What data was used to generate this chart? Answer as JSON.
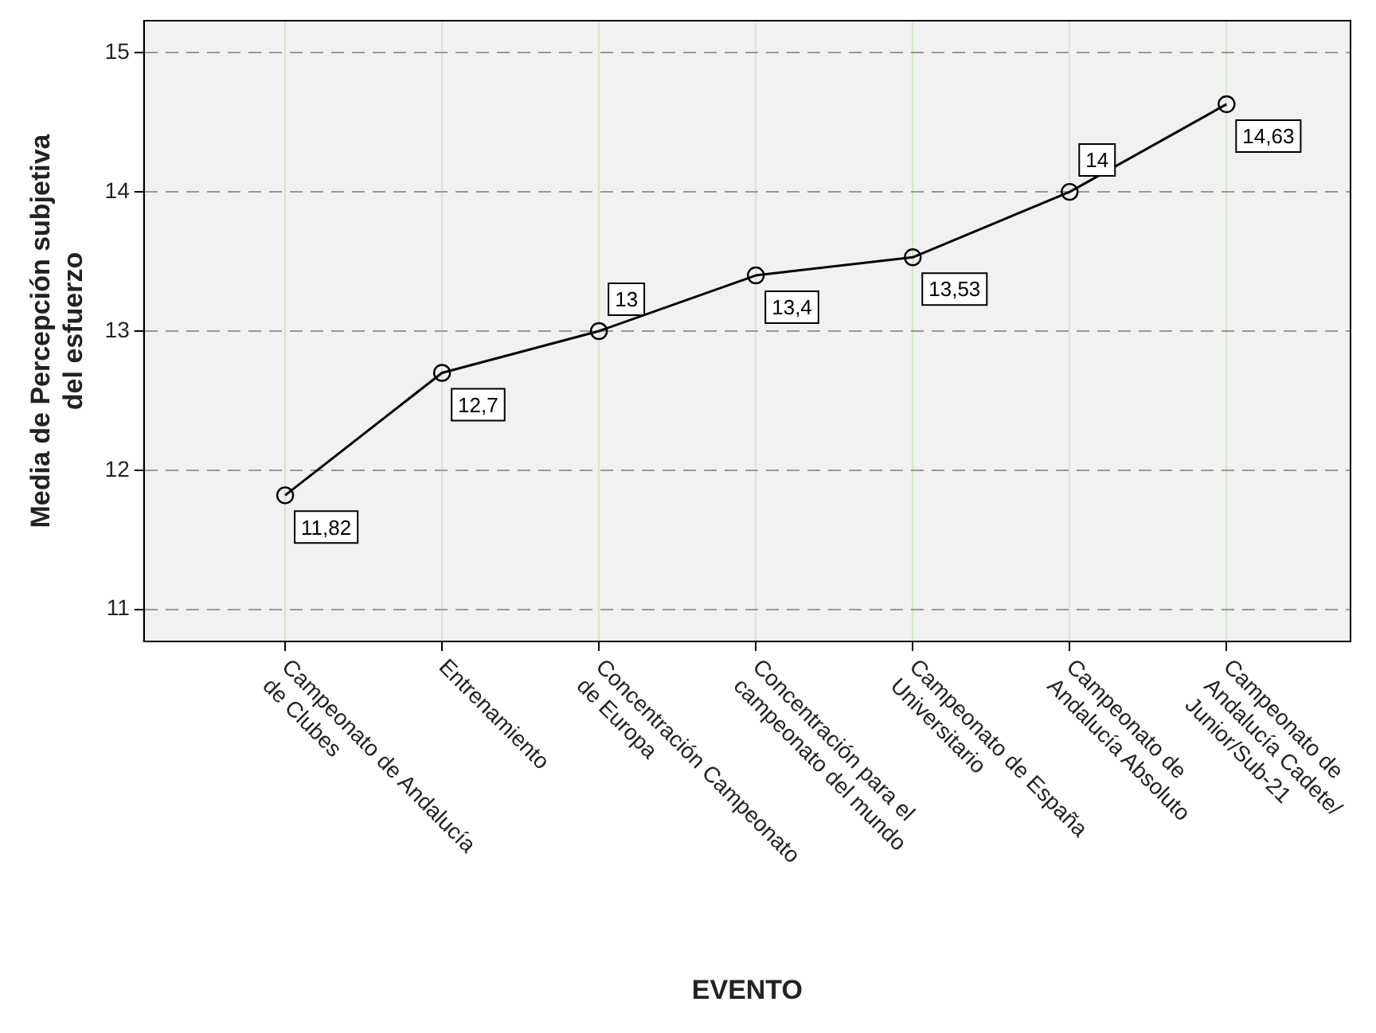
{
  "chart_data": {
    "type": "line",
    "xlabel": "EVENTO",
    "ylabel": "Media de Percepción subjetiva\ndel esfuerzo",
    "categories": [
      "Campeonato de Andalucía\nde Clubes",
      "Entrenamiento",
      "Concentración Campeonato\nde Europa",
      "Concentración para el\ncampeonato del mundo",
      "Campeonato de España\nUniversitario",
      "Campeonato de\nAndalucía Absoluto",
      "Campeonato de\nAndalucía Cadete/\nJunior/Sub-21"
    ],
    "series": [
      {
        "color": "#000000",
        "values": [
          11.82,
          12.7,
          13,
          13.4,
          13.53,
          14,
          14.63
        ],
        "value_labels": [
          "11,82",
          "12,7",
          "13",
          "13,4",
          "13,53",
          "14",
          "14,63"
        ]
      }
    ],
    "ylim": [
      10.77,
      15.23
    ],
    "yticks": [
      11,
      12,
      13,
      14,
      15
    ],
    "grid": true,
    "legend": false,
    "marker": "circle",
    "line_style": "solid"
  }
}
